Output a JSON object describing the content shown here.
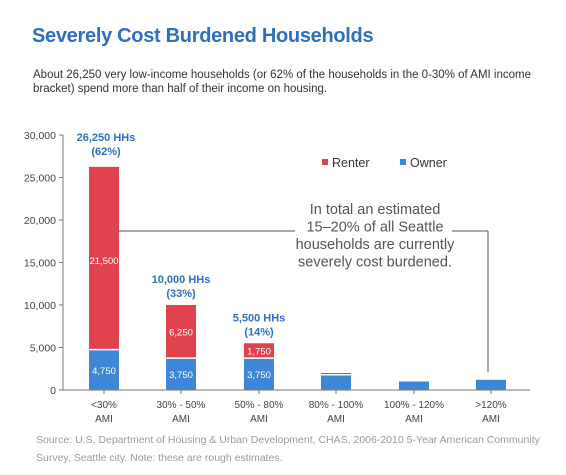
{
  "title": "Severely Cost Burdened Households",
  "subtitle": "About 26,250 very low-income households (or 62% of the households in the 0-30% of AMI income bracket) spend more than half of their income on housing.",
  "source": "Source: U.S. Department of Housing & Urban Development, CHAS, 2006-2010 5-Year American Community Survey, Seattle city.  Note: these are rough estimates.",
  "callout": {
    "lines": [
      "In total an estimated",
      "15–20% of all Seattle",
      "households are currently",
      "severely cost burdened."
    ]
  },
  "colors": {
    "renter": "#e0424e",
    "owner": "#3f86d6",
    "accent": "#2f6fc0"
  },
  "chart_data": {
    "type": "bar",
    "stacked": true,
    "categories": [
      [
        "<30%",
        "AMI"
      ],
      [
        "30% - 50%",
        "AMI"
      ],
      [
        "50% - 80%",
        "AMI"
      ],
      [
        "80% - 100%",
        "AMI"
      ],
      [
        "100% - 120%",
        "AMI"
      ],
      [
        ">120%",
        "AMI"
      ]
    ],
    "series": [
      {
        "name": "Owner",
        "values": [
          4750,
          3750,
          3750,
          1800,
          1000,
          1200
        ]
      },
      {
        "name": "Renter",
        "values": [
          21500,
          6250,
          1750,
          200,
          0,
          0
        ]
      }
    ],
    "segment_labels": {
      "Owner": [
        "4,750",
        "3,750",
        "3,750",
        "",
        "",
        ""
      ],
      "Renter": [
        "21,500",
        "6,250",
        "1,750",
        "",
        "",
        ""
      ]
    },
    "total_labels": [
      [
        "26,250 HHs",
        "(62%)"
      ],
      [
        "10,000 HHs",
        "(33%)"
      ],
      [
        "5,500 HHs",
        "(14%)"
      ],
      [],
      [],
      []
    ],
    "ylim": [
      0,
      30000
    ],
    "yticks": [
      0,
      5000,
      10000,
      15000,
      20000,
      25000,
      30000
    ],
    "ytick_labels": [
      "0",
      "5,000",
      "10,000",
      "15,000",
      "20,000",
      "25,000",
      "30,000"
    ],
    "xlabel": "",
    "ylabel": "",
    "legend": [
      "Renter",
      "Owner"
    ],
    "legend_position": "top-right",
    "grid": false
  }
}
